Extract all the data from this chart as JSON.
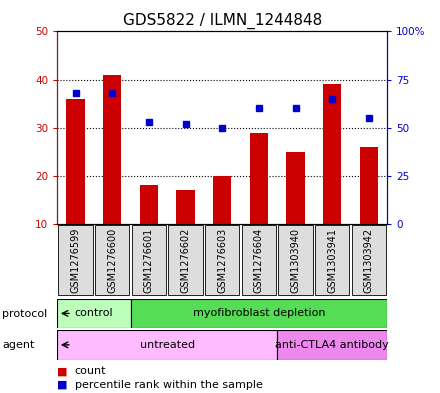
{
  "title": "GDS5822 / ILMN_1244848",
  "samples": [
    "GSM1276599",
    "GSM1276600",
    "GSM1276601",
    "GSM1276602",
    "GSM1276603",
    "GSM1276604",
    "GSM1303940",
    "GSM1303941",
    "GSM1303942"
  ],
  "counts": [
    36,
    41,
    18,
    17,
    20,
    29,
    25,
    39,
    26
  ],
  "percentiles": [
    68,
    68,
    53,
    52,
    50,
    60,
    60,
    65,
    55
  ],
  "bar_color": "#cc0000",
  "dot_color": "#0000cc",
  "ylim_left": [
    10,
    50
  ],
  "ylim_right": [
    0,
    100
  ],
  "yticks_left": [
    10,
    20,
    30,
    40,
    50
  ],
  "yticks_right": [
    0,
    25,
    50,
    75,
    100
  ],
  "ytick_labels_left": [
    "10",
    "20",
    "30",
    "40",
    "50"
  ],
  "ytick_labels_right": [
    "0",
    "25",
    "50",
    "75",
    "100%"
  ],
  "protocol_groups": [
    {
      "label": "control",
      "start": 0,
      "end": 2,
      "color": "#aaffaa"
    },
    {
      "label": "myofibroblast depletion",
      "start": 2,
      "end": 9,
      "color": "#55dd55"
    }
  ],
  "agent_groups": [
    {
      "label": "untreated",
      "start": 0,
      "end": 6,
      "color": "#ffbbff"
    },
    {
      "label": "anti-CTLA4 antibody",
      "start": 6,
      "end": 9,
      "color": "#ee88ee"
    }
  ],
  "protocol_label": "protocol",
  "agent_label": "agent",
  "legend_count_color": "#cc0000",
  "legend_dot_color": "#0000cc",
  "background_color": "#ffffff",
  "plot_bg_color": "#ffffff",
  "title_fontsize": 11,
  "tick_fontsize": 7.5,
  "label_fontsize": 8,
  "sample_fontsize": 7,
  "sample_box_color": "#dddddd"
}
